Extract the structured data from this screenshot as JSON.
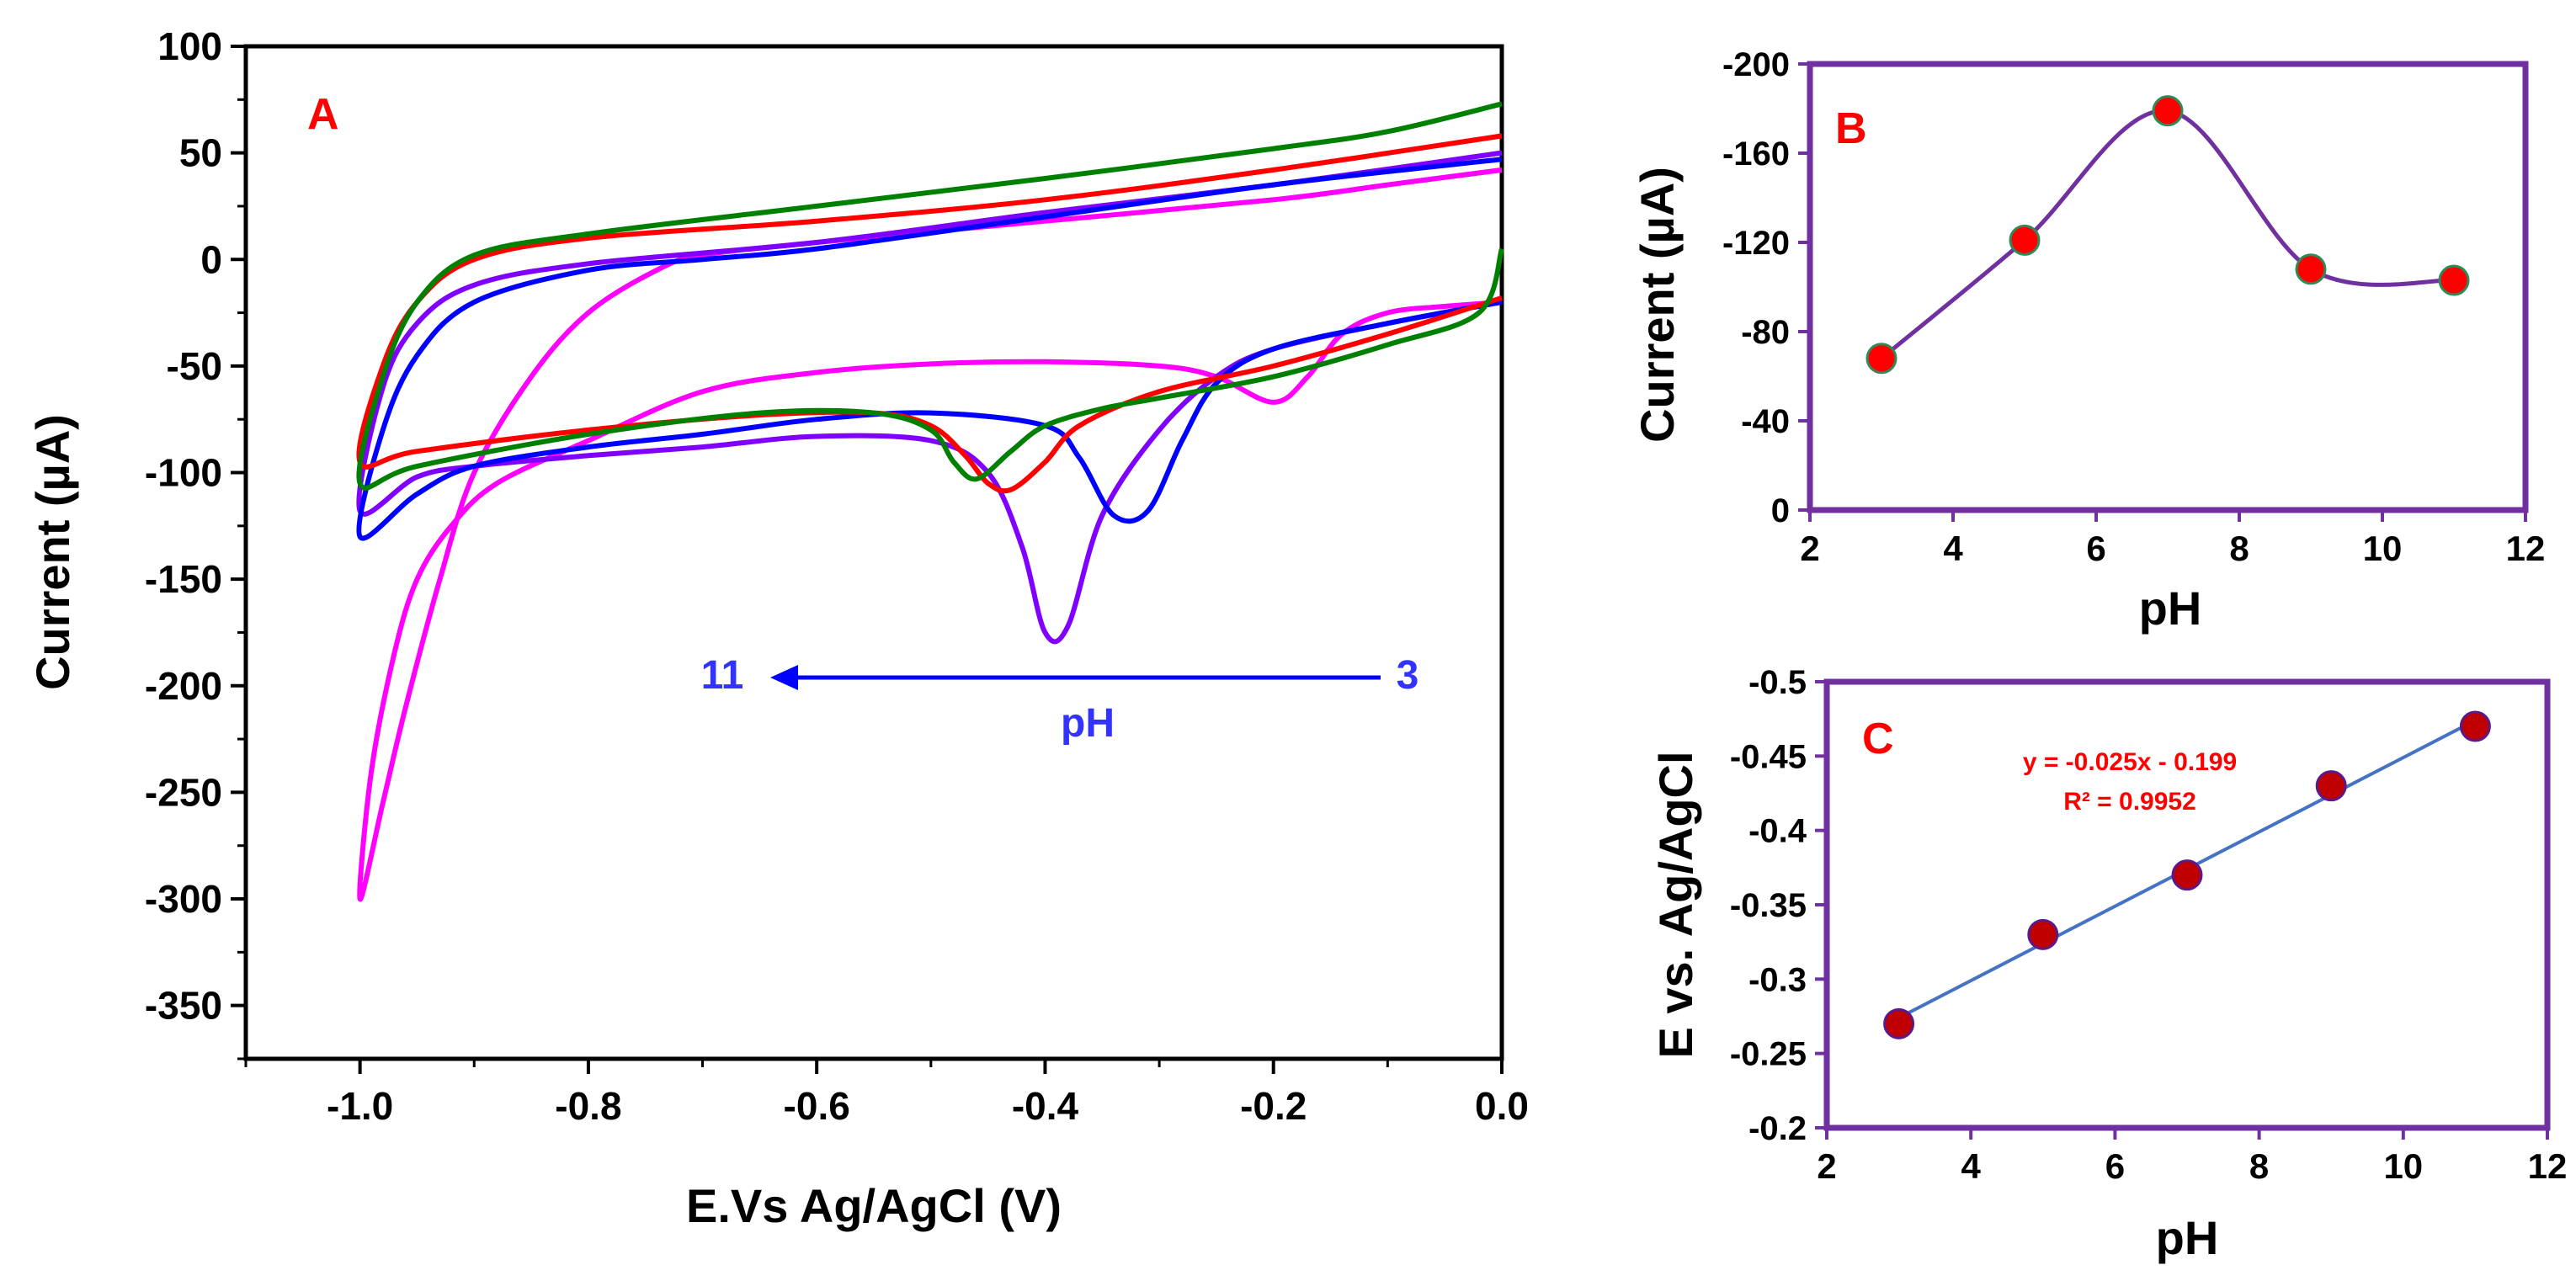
{
  "chart_data": [
    {
      "panel": "A",
      "type": "line",
      "panel_letter": "A",
      "xlabel": "E.Vs Ag/AgCl (V)",
      "ylabel": "Current (µA)",
      "xlim": [
        -1.1,
        0.0
      ],
      "ylim": [
        -375,
        100
      ],
      "xticks": [
        "-1.0",
        "-0.8",
        "-0.6",
        "-0.4",
        "-0.2",
        "0.0"
      ],
      "yticks": [
        "100",
        "50",
        "0",
        "-50",
        "-100",
        "-150",
        "-200",
        "-250",
        "-300",
        "-350"
      ],
      "annotation": {
        "left": "11",
        "right": "3",
        "label": "pH"
      },
      "series": [
        {
          "color": "#ff00ff",
          "reverse": [
            [
              0.0,
              42
            ],
            [
              -0.1,
              35
            ],
            [
              -0.2,
              28
            ],
            [
              -0.4,
              18
            ],
            [
              -0.6,
              8
            ],
            [
              -0.7,
              2
            ],
            [
              -0.74,
              -5
            ],
            [
              -0.8,
              -25
            ],
            [
              -0.85,
              -55
            ],
            [
              -0.9,
              -100
            ],
            [
              -0.93,
              -150
            ],
            [
              -0.96,
              -210
            ],
            [
              -0.98,
              -255
            ],
            [
              -1.0,
              -300
            ]
          ],
          "forward": [
            [
              -1.0,
              -298
            ],
            [
              -0.99,
              -240
            ],
            [
              -0.97,
              -185
            ],
            [
              -0.95,
              -150
            ],
            [
              -0.92,
              -125
            ],
            [
              -0.88,
              -105
            ],
            [
              -0.8,
              -85
            ],
            [
              -0.7,
              -62
            ],
            [
              -0.6,
              -53
            ],
            [
              -0.5,
              -49
            ],
            [
              -0.4,
              -48
            ],
            [
              -0.3,
              -50
            ],
            [
              -0.25,
              -55
            ],
            [
              -0.2,
              -67
            ],
            [
              -0.17,
              -55
            ],
            [
              -0.14,
              -35
            ],
            [
              -0.1,
              -25
            ],
            [
              -0.05,
              -22
            ],
            [
              0.0,
              -20
            ]
          ]
        },
        {
          "color": "#7f00ff",
          "reverse": [
            [
              0.0,
              50
            ],
            [
              -0.2,
              35
            ],
            [
              -0.4,
              22
            ],
            [
              -0.6,
              8
            ],
            [
              -0.8,
              -2
            ],
            [
              -0.9,
              -12
            ],
            [
              -0.95,
              -30
            ],
            [
              -0.98,
              -60
            ],
            [
              -1.0,
              -118
            ]
          ],
          "forward": [
            [
              -1.0,
              -118
            ],
            [
              -0.95,
              -102
            ],
            [
              -0.9,
              -97
            ],
            [
              -0.8,
              -92
            ],
            [
              -0.7,
              -88
            ],
            [
              -0.6,
              -83
            ],
            [
              -0.5,
              -85
            ],
            [
              -0.45,
              -100
            ],
            [
              -0.42,
              -135
            ],
            [
              -0.4,
              -175
            ],
            [
              -0.38,
              -172
            ],
            [
              -0.35,
              -120
            ],
            [
              -0.3,
              -80
            ],
            [
              -0.25,
              -55
            ],
            [
              -0.2,
              -42
            ],
            [
              -0.1,
              -30
            ],
            [
              0.0,
              -20
            ]
          ]
        },
        {
          "color": "#0000ff",
          "reverse": [
            [
              0.0,
              47
            ],
            [
              -0.2,
              35
            ],
            [
              -0.4,
              20
            ],
            [
              -0.6,
              5
            ],
            [
              -0.7,
              0
            ],
            [
              -0.8,
              -5
            ],
            [
              -0.9,
              -20
            ],
            [
              -0.95,
              -45
            ],
            [
              -0.98,
              -80
            ],
            [
              -1.0,
              -130
            ]
          ],
          "forward": [
            [
              -1.0,
              -130
            ],
            [
              -0.95,
              -110
            ],
            [
              -0.9,
              -97
            ],
            [
              -0.8,
              -88
            ],
            [
              -0.7,
              -82
            ],
            [
              -0.6,
              -75
            ],
            [
              -0.5,
              -72
            ],
            [
              -0.4,
              -78
            ],
            [
              -0.37,
              -93
            ],
            [
              -0.34,
              -120
            ],
            [
              -0.31,
              -118
            ],
            [
              -0.28,
              -85
            ],
            [
              -0.25,
              -58
            ],
            [
              -0.2,
              -42
            ],
            [
              -0.1,
              -30
            ],
            [
              0.0,
              -20
            ]
          ]
        },
        {
          "color": "#ff0000",
          "reverse": [
            [
              0.0,
              58
            ],
            [
              -0.2,
              42
            ],
            [
              -0.4,
              28
            ],
            [
              -0.6,
              18
            ],
            [
              -0.8,
              10
            ],
            [
              -0.9,
              0
            ],
            [
              -0.95,
              -20
            ],
            [
              -0.98,
              -50
            ],
            [
              -1.0,
              -95
            ]
          ],
          "forward": [
            [
              -1.0,
              -95
            ],
            [
              -0.95,
              -90
            ],
            [
              -0.8,
              -80
            ],
            [
              -0.65,
              -73
            ],
            [
              -0.55,
              -72
            ],
            [
              -0.5,
              -78
            ],
            [
              -0.47,
              -92
            ],
            [
              -0.45,
              -105
            ],
            [
              -0.43,
              -108
            ],
            [
              -0.4,
              -95
            ],
            [
              -0.37,
              -78
            ],
            [
              -0.3,
              -62
            ],
            [
              -0.2,
              -50
            ],
            [
              -0.1,
              -35
            ],
            [
              0.0,
              -18
            ]
          ]
        },
        {
          "color": "#008000",
          "reverse": [
            [
              0.0,
              73
            ],
            [
              -0.1,
              60
            ],
            [
              -0.2,
              52
            ],
            [
              -0.4,
              38
            ],
            [
              -0.6,
              25
            ],
            [
              -0.8,
              12
            ],
            [
              -0.9,
              2
            ],
            [
              -0.95,
              -20
            ],
            [
              -0.98,
              -55
            ],
            [
              -1.0,
              -105
            ]
          ],
          "forward": [
            [
              -1.0,
              -105
            ],
            [
              -0.95,
              -97
            ],
            [
              -0.8,
              -82
            ],
            [
              -0.65,
              -72
            ],
            [
              -0.55,
              -72
            ],
            [
              -0.5,
              -80
            ],
            [
              -0.48,
              -95
            ],
            [
              -0.46,
              -103
            ],
            [
              -0.43,
              -90
            ],
            [
              -0.4,
              -78
            ],
            [
              -0.35,
              -70
            ],
            [
              -0.3,
              -65
            ],
            [
              -0.2,
              -55
            ],
            [
              -0.1,
              -40
            ],
            [
              -0.02,
              -25
            ],
            [
              0.0,
              5
            ]
          ]
        }
      ]
    },
    {
      "panel": "B",
      "type": "line",
      "panel_letter": "B",
      "xlabel": "pH",
      "ylabel": "Current (µA)",
      "xlim": [
        2,
        12
      ],
      "ylim": [
        0,
        -200
      ],
      "xticks": [
        "2",
        "4",
        "6",
        "8",
        "10",
        "12"
      ],
      "yticks": [
        "-200",
        "-160",
        "-120",
        "-80",
        "-40",
        "0"
      ],
      "line_color": "#7030a0",
      "marker_color": "#ff0000",
      "x": [
        3,
        5,
        7,
        9,
        11
      ],
      "y": [
        -68,
        -121,
        -179,
        -108,
        -103
      ]
    },
    {
      "panel": "C",
      "type": "scatter",
      "panel_letter": "C",
      "xlabel": "pH",
      "ylabel": "E vs. Ag/AgCl",
      "xlim": [
        2,
        12
      ],
      "ylim": [
        -0.2,
        -0.5
      ],
      "xticks": [
        "2",
        "4",
        "6",
        "8",
        "10",
        "12"
      ],
      "yticks": [
        "-0.5",
        "-0.45",
        "-0.4",
        "-0.35",
        "-0.3",
        "-0.25",
        "-0.2"
      ],
      "equation": "y = -0.025x - 0.199",
      "r2": "R² = 0.9952",
      "trendline_color": "#4472c4",
      "marker_color": "#c00000",
      "x": [
        3,
        5,
        7,
        9,
        11
      ],
      "y": [
        -0.27,
        -0.33,
        -0.37,
        -0.43,
        -0.47
      ]
    }
  ]
}
